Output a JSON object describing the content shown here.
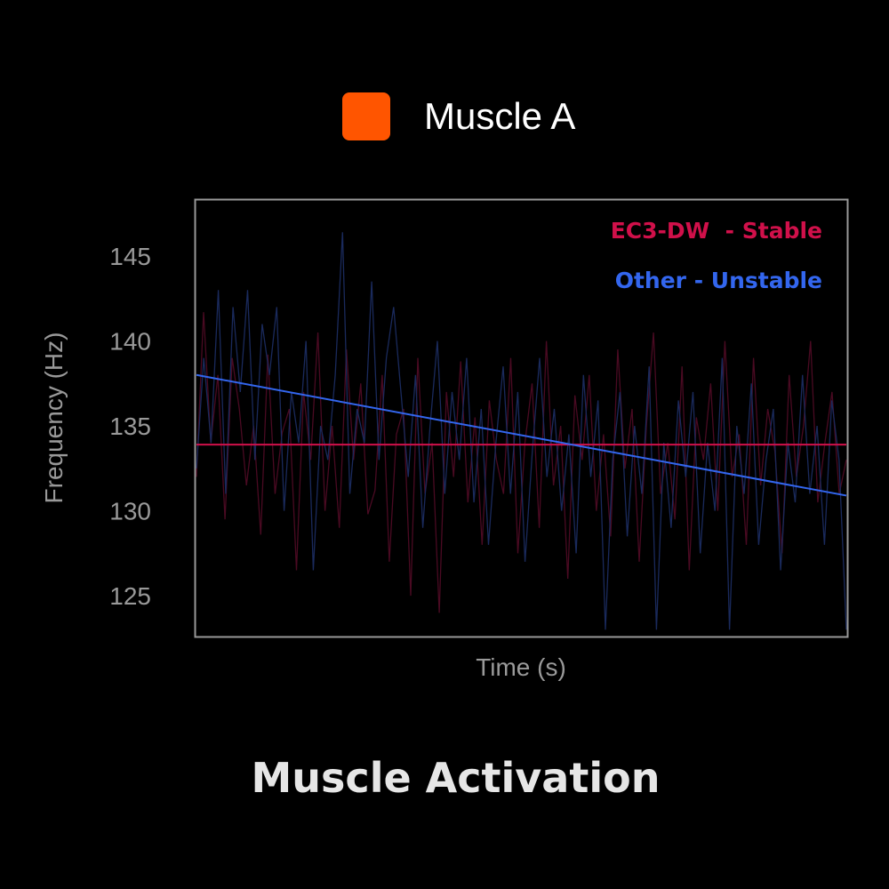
{
  "top_legend": {
    "label": "Muscle A",
    "color": "#ff5500"
  },
  "chart_data": {
    "type": "line",
    "title": "Muscle Activation",
    "xlabel": "Time (s)",
    "ylabel": "Frequency (Hz)",
    "ylim": [
      122.6,
      148.3
    ],
    "yticks": [
      125,
      130,
      135,
      140,
      145
    ],
    "ytick_labels": [
      "125",
      "130",
      "135",
      "140",
      "145"
    ],
    "grid": false,
    "legend_placement": "top-right",
    "series": [
      {
        "name": "EC3-DW  - Stable",
        "color": "#d0104a",
        "noise_color": "#4a0a22",
        "trend": [
          133.9,
          133.9
        ],
        "noise": [
          132,
          141.7,
          134,
          138,
          129.5,
          139,
          136,
          131.5,
          135,
          128.6,
          139.2,
          131,
          134.6,
          136,
          126.5,
          137,
          133,
          140.5,
          130,
          135,
          129,
          139.5,
          133,
          137.5,
          129.8,
          131.2,
          138,
          127,
          134.5,
          136,
          125,
          139,
          131,
          134,
          124,
          137,
          132,
          138.8,
          130.5,
          135.5,
          128,
          136.5,
          133,
          131,
          139,
          127.5,
          134,
          137.5,
          129,
          140,
          131.5,
          135,
          126,
          136.8,
          133,
          138,
          130,
          134.5,
          128.5,
          139.5,
          132.5,
          136,
          127,
          135,
          140.5,
          131,
          134,
          129.5,
          138.5,
          126.5,
          135.5,
          133,
          137.5,
          130,
          140,
          132,
          134.5,
          128,
          139,
          131.5,
          136,
          133.5,
          127.5,
          138,
          132,
          135,
          140,
          130.5,
          134,
          137,
          131,
          133
        ]
      },
      {
        "name": "Other - Unstable",
        "color": "#3366ee",
        "noise_color": "#1a2a5c",
        "trend": [
          138.0,
          130.9
        ],
        "noise": [
          132.5,
          139,
          134,
          143,
          131,
          142,
          137,
          143,
          133,
          141,
          138,
          142,
          130,
          137,
          134,
          140,
          126.5,
          135,
          133,
          138,
          146.4,
          131,
          136,
          134,
          143.5,
          133,
          139,
          142,
          137,
          132,
          138,
          129,
          135,
          140,
          131,
          137,
          133,
          139,
          130.5,
          136,
          128,
          134,
          138.5,
          131,
          137,
          127,
          133.5,
          139,
          132,
          136,
          130,
          134.5,
          127.5,
          138,
          132,
          136.5,
          123,
          133,
          137,
          128.5,
          135,
          131,
          138.5,
          123,
          134,
          129,
          136.5,
          132,
          137,
          127.5,
          134,
          130,
          139,
          123,
          135,
          131,
          137.5,
          128,
          133,
          136,
          126.5,
          134,
          130.5,
          138,
          131,
          135,
          128,
          136.5,
          133,
          123
        ]
      }
    ]
  }
}
